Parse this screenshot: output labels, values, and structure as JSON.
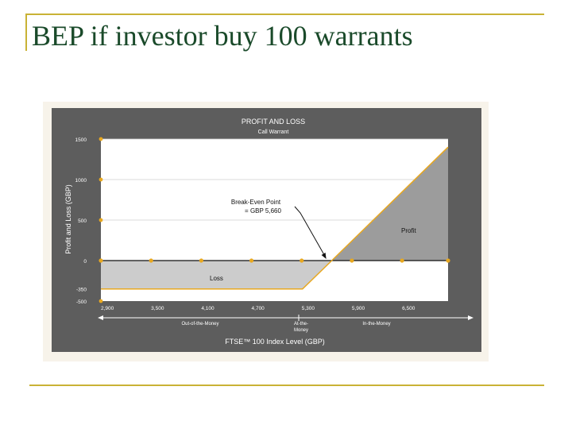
{
  "slide": {
    "title": "BEP if investor buy 100 warrants"
  },
  "colors": {
    "title": "#1a4a2a",
    "rule": "#c9b235",
    "chart_frame": "#5d5d5d",
    "plot_bg": "#ffffff",
    "area": "#9c9c9c",
    "loss_area": "#cccccc",
    "series_line": "#e8a820"
  },
  "chart_data": {
    "type": "line",
    "title": "PROFIT AND LOSS",
    "subtitle": "Call Warrant",
    "xlabel": "FTSE™ 100 Index Level (GBP)",
    "ylabel": "Profit and Loss (GBP)",
    "x_ticks": [
      2900,
      3500,
      4100,
      4700,
      5300,
      5900,
      6500
    ],
    "x_tick_labels": [
      "2,900",
      "3,500",
      "4,100",
      "4,700",
      "5,300",
      "5,900",
      "6,500"
    ],
    "y_ticks": [
      1500,
      1000,
      500,
      0,
      -350,
      -500
    ],
    "y_tick_labels": [
      "1500",
      "1000",
      "500",
      "0",
      "-350",
      "-500"
    ],
    "xlim": [
      2900,
      7050
    ],
    "ylim": [
      -500,
      1500
    ],
    "grid": true,
    "series": [
      {
        "x": [
          2900,
          5310,
          5660,
          7050
        ],
        "y": [
          -350,
          -350,
          0,
          1400
        ]
      }
    ],
    "markers_y0_x": [
      2900,
      3500,
      4100,
      4700,
      5300,
      5900,
      6500,
      7050
    ],
    "markers_y_axis": [
      1500,
      1000,
      500,
      -500
    ],
    "annotations": {
      "bep_line1": "Break-Even Point",
      "bep_line2": "= GBP 5,660",
      "bep_x": 5660,
      "profit": "Profit",
      "loss": "Loss"
    },
    "moneyness": {
      "out": "Out-of-the-Money",
      "at_line1": "At-the-",
      "at_line2": "Money",
      "in": "In-the-Money"
    }
  }
}
